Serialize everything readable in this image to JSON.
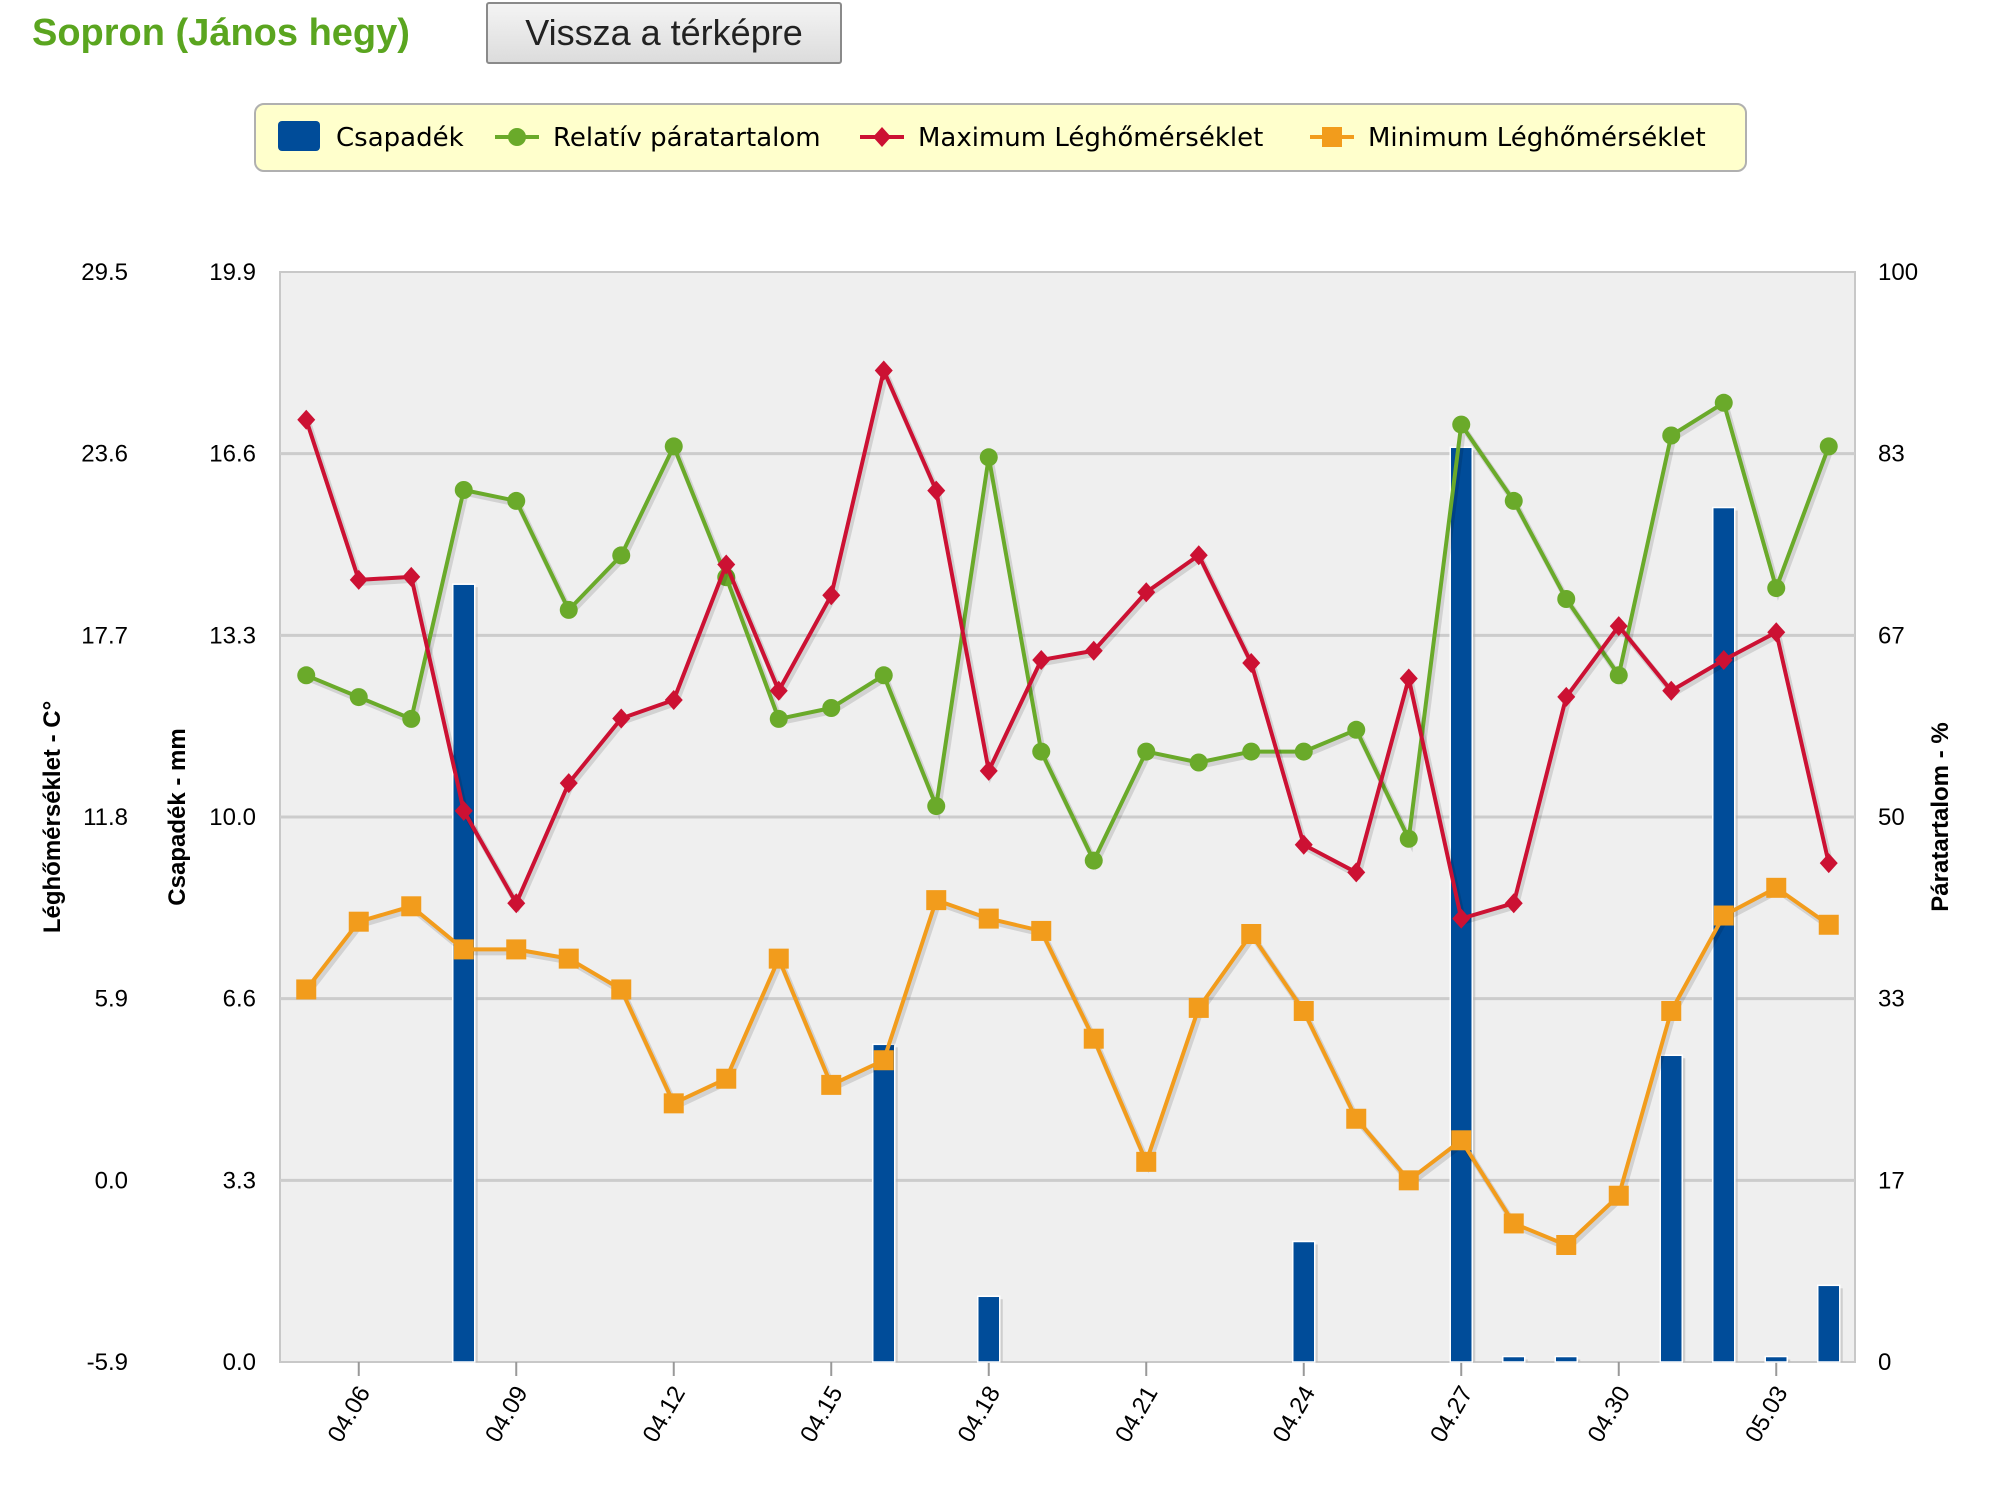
{
  "header": {
    "station_name": "Sopron (János hegy)",
    "back_button_label": "Vissza a térképre"
  },
  "colors": {
    "precipitation": "#004c99",
    "humidity": "#6aaa2a",
    "max_temp": "#cc1133",
    "min_temp": "#f29c1c",
    "title_green": "#5aa51f",
    "legend_bg": "#ffffcc",
    "plot_bg": "#efefef"
  },
  "chart_data": {
    "type": "bar",
    "legend": {
      "placement": "top",
      "items": [
        {
          "label": "Csapadék",
          "marker": "bar"
        },
        {
          "label": "Relatív páratartalom",
          "marker": "circle"
        },
        {
          "label": "Maximum Léghőmérséklet",
          "marker": "diamond"
        },
        {
          "label": "Minimum Léghőmérséklet",
          "marker": "square"
        }
      ]
    },
    "x_tick_labels": [
      "04.06",
      "04.09",
      "04.12",
      "04.15",
      "04.18",
      "04.21",
      "04.24",
      "04.27",
      "04.30",
      "05.03"
    ],
    "dates": [
      "04.05",
      "04.06",
      "04.07",
      "04.08",
      "04.09",
      "04.10",
      "04.11",
      "04.12",
      "04.13",
      "04.14",
      "04.15",
      "04.16",
      "04.17",
      "04.18",
      "04.19",
      "04.20",
      "04.21",
      "04.22",
      "04.23",
      "04.24",
      "04.25",
      "04.26",
      "04.27",
      "04.28",
      "04.29",
      "04.30",
      "05.01",
      "05.02",
      "05.03",
      "05.04"
    ],
    "axes": {
      "temperature": {
        "label": "Léghőmérséklet - C°",
        "ticks": [
          "29.5",
          "23.6",
          "17.7",
          "11.8",
          "5.9",
          "0.0",
          "-5.9"
        ],
        "range": [
          -5.9,
          29.5
        ]
      },
      "precipitation": {
        "label": "Csapadék - mm",
        "ticks": [
          "19.9",
          "16.6",
          "13.3",
          "10.0",
          "6.6",
          "3.3",
          "0.0"
        ],
        "range": [
          0,
          19.9
        ]
      },
      "humidity": {
        "label": "Páratartalom - %",
        "ticks": [
          "100",
          "83",
          "67",
          "50",
          "33",
          "17",
          "0"
        ],
        "range": [
          0,
          100
        ]
      }
    },
    "grid": true,
    "series": [
      {
        "name": "Csapadék",
        "type": "bar",
        "axis": "precipitation",
        "values": [
          0,
          0,
          0,
          14.2,
          0,
          0,
          0,
          0,
          0,
          0,
          0,
          5.8,
          0,
          1.2,
          0,
          0,
          0,
          0,
          0,
          2.2,
          0,
          0,
          16.7,
          0.1,
          0.1,
          0,
          5.6,
          15.6,
          0.1,
          1.4
        ]
      },
      {
        "name": "Relatív páratartalom",
        "type": "line",
        "axis": "humidity",
        "values": [
          63,
          61,
          59,
          80,
          79,
          69,
          74,
          84,
          72,
          59,
          60,
          63,
          51,
          83,
          56,
          46,
          56,
          55,
          56,
          56,
          58,
          48,
          86,
          79,
          70,
          63,
          85,
          88,
          71,
          84
        ]
      },
      {
        "name": "Maximum Léghőmérséklet",
        "type": "line",
        "axis": "temperature",
        "values": [
          24.7,
          19.5,
          19.6,
          12.0,
          9.0,
          12.9,
          15.0,
          15.6,
          20.0,
          15.9,
          19.0,
          26.3,
          22.4,
          13.3,
          16.9,
          17.2,
          19.1,
          20.3,
          16.8,
          10.9,
          10.0,
          16.3,
          8.5,
          9.0,
          15.7,
          18.0,
          15.9,
          16.9,
          17.8,
          10.3
        ]
      },
      {
        "name": "Minimum Léghőmérséklet",
        "type": "line",
        "axis": "temperature",
        "values": [
          6.2,
          8.4,
          8.9,
          7.5,
          7.5,
          7.2,
          6.2,
          2.5,
          3.3,
          7.2,
          3.1,
          3.9,
          9.1,
          8.5,
          8.1,
          4.6,
          0.6,
          5.6,
          8.0,
          5.5,
          2.0,
          0.0,
          1.3,
          -1.4,
          -2.1,
          -0.5,
          5.5,
          8.6,
          9.5,
          8.3
        ]
      }
    ]
  }
}
